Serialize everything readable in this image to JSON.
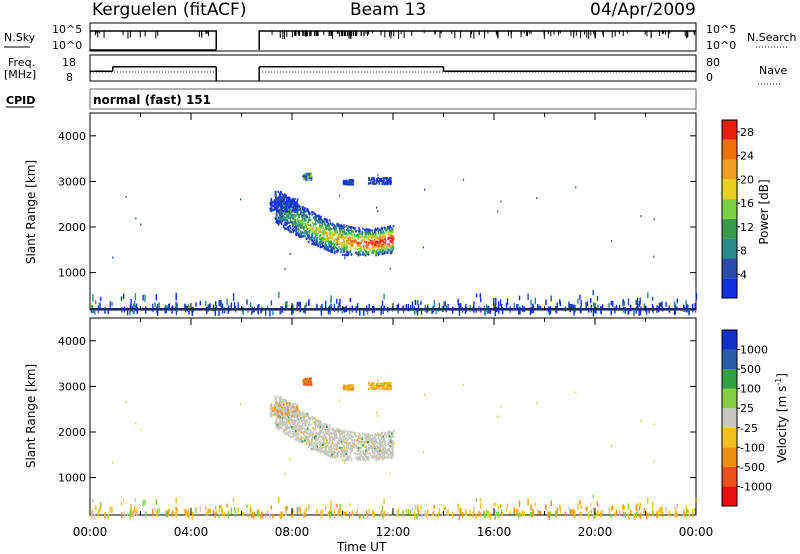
{
  "header": {
    "title": "Kerguelen (fitACF)",
    "beam": "Beam 13",
    "date": "04/Apr/2009"
  },
  "labels": {
    "nsky": "N.Sky",
    "nsearch": "N.Search",
    "freq": "Freq.",
    "freq_unit": "[MHz]",
    "nave": "Nave",
    "cpid": "CPID",
    "cpid_value": "normal (fast) 151",
    "nsky_ticks": [
      "10^5",
      "10^0"
    ],
    "nsearch_ticks": [
      "10^5",
      "10^0"
    ],
    "freq_ticks": [
      "18",
      "8"
    ],
    "nave_ticks": [
      "80",
      "0"
    ]
  },
  "axes": {
    "ylabel": "Slant Range [km]",
    "xlabel": "Time UT",
    "yticks": [
      1000,
      2000,
      3000,
      4000
    ],
    "xtick_labels": [
      "00:00",
      "04:00",
      "08:00",
      "12:00",
      "16:00",
      "20:00",
      "00:00"
    ],
    "xlim_hours": [
      0,
      24
    ],
    "ylim_km": [
      180,
      4500
    ]
  },
  "colors": {
    "power": [
      "#1030e0",
      "#2a4ca8",
      "#2e8b8b",
      "#3a9a4c",
      "#7ad03e",
      "#e8d020",
      "#f0a020",
      "#f07010",
      "#e82010"
    ],
    "velocity": [
      "#e81010",
      "#f05020",
      "#f09010",
      "#f0c020",
      "#c8c8c0",
      "#80d040",
      "#30a040",
      "#2a5ca8",
      "#1030c8"
    ],
    "ground_scatter": "#c8c8c0"
  },
  "chart_data": [
    {
      "type": "heatmap",
      "title": "",
      "xlabel": "Time UT",
      "ylabel": "Slant Range [km]",
      "xlim": [
        0,
        24
      ],
      "ylim": [
        180,
        4500
      ],
      "colorbar": {
        "label": "Power [dB]",
        "ticks": [
          4,
          8,
          12,
          16,
          20,
          24,
          28
        ],
        "range": [
          0,
          30
        ]
      },
      "features": [
        {
          "name": "main echo",
          "time_start": 7.2,
          "time_end": 12.4,
          "range_start": 1500,
          "range_end": 2800,
          "peak_power_db": 28
        },
        {
          "name": "near-range scatter",
          "time_start": 0,
          "time_end": 24,
          "range_start": 200,
          "range_end": 600,
          "power_db": 4
        }
      ]
    },
    {
      "type": "heatmap",
      "title": "",
      "xlabel": "Time UT",
      "ylabel": "Slant Range [km]",
      "xlim": [
        0,
        24
      ],
      "ylim": [
        180,
        4500
      ],
      "colorbar": {
        "label": "Velocity [m s^-1]",
        "ticks": [
          1000,
          500,
          100,
          25,
          -25,
          -100,
          -500,
          -1000
        ]
      },
      "features": [
        {
          "name": "ground scatter",
          "time_start": 7.5,
          "time_end": 12.0,
          "range_start": 1500,
          "range_end": 2700,
          "velocity": 0
        }
      ]
    },
    {
      "type": "line",
      "name": "N.Sky",
      "gaps_hours": [
        [
          5.0,
          6.7
        ]
      ],
      "level": "10^5"
    },
    {
      "type": "line",
      "name": "Freq.",
      "segments": [
        {
          "start": 0,
          "end": 0.9,
          "mhz": 12
        },
        {
          "start": 0.9,
          "end": 5.0,
          "mhz": 14
        },
        {
          "start": 6.7,
          "end": 14.0,
          "mhz": 14
        },
        {
          "start": 14.0,
          "end": 24,
          "mhz": 12
        }
      ]
    }
  ]
}
